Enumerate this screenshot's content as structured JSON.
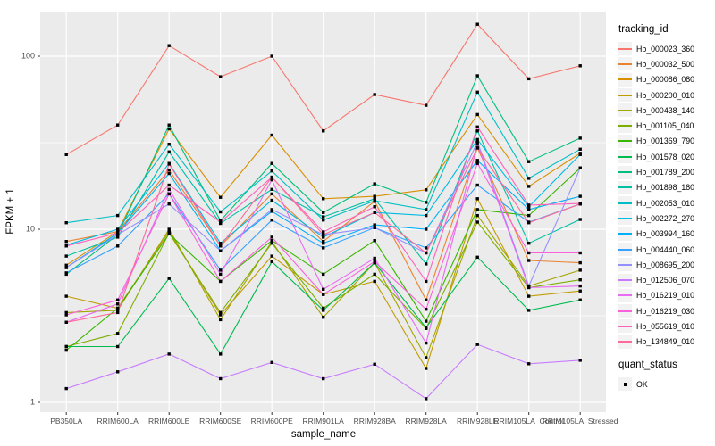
{
  "figure": {
    "background": "#FFFFFF",
    "panel_background": "#EBEBEB",
    "grid_color": "#FFFFFF",
    "tick_label_color": "#4D4D4D",
    "point_color": "#000000"
  },
  "axes": {
    "x_title": "sample_name",
    "y_title": "FPKM + 1",
    "y_tick_labels": [
      "1",
      "10",
      "100"
    ]
  },
  "legend": {
    "tracking_title": "tracking_id",
    "quant_title": "quant_status",
    "quant_items": [
      {
        "label": "OK",
        "shape": "filled-square"
      }
    ]
  },
  "chart_data": {
    "type": "line",
    "title": "",
    "xlabel": "sample_name",
    "ylabel": "FPKM + 1",
    "y_scale": "log10",
    "ylim": [
      0.88,
      180
    ],
    "y_major_ticks": [
      1,
      10,
      100
    ],
    "y_minor_ticks": [
      3.1623,
      31.623
    ],
    "grid": true,
    "legend_position": "right",
    "point_shape": "filled-square",
    "quant_status": "OK",
    "categories": [
      "PB350LA",
      "RRIM600LA",
      "RRIM600LE",
      "RRIM600SE",
      "RRIM600PE",
      "RRIM901LA",
      "RRIM928BA",
      "RRIM928LA",
      "RRIM928LE",
      "RRIM105LA_Control",
      "RRIM105LA_Stressed"
    ],
    "series": [
      {
        "name": "Hb_000023_360",
        "color": "#F8766D",
        "values": [
          27,
          40,
          115,
          76,
          100,
          37,
          60,
          52,
          153,
          74,
          88
        ]
      },
      {
        "name": "Hb_000032_500",
        "color": "#EA8331",
        "values": [
          8.5,
          9.7,
          22,
          8.0,
          16,
          8.5,
          14.5,
          3.9,
          29.5,
          6.6,
          6.4
        ]
      },
      {
        "name": "Hb_000086_080",
        "color": "#D89000",
        "values": [
          6.2,
          9.7,
          38,
          15.3,
          35,
          15,
          15.5,
          16.9,
          46,
          17.7,
          27.5
        ]
      },
      {
        "name": "Hb_000200_010",
        "color": "#C09B00",
        "values": [
          4.1,
          3.5,
          9.7,
          3.2,
          7.0,
          4.2,
          5.0,
          1.57,
          15,
          4.1,
          4.4
        ]
      },
      {
        "name": "Hb_000438_140",
        "color": "#A3A500",
        "values": [
          3.3,
          3.4,
          10,
          3.0,
          8.5,
          3.1,
          6.4,
          1.81,
          12,
          4.7,
          5.8
        ]
      },
      {
        "name": "Hb_001105_040",
        "color": "#7CAE00",
        "values": [
          2.1,
          2.5,
          9.5,
          3.3,
          8.3,
          3.5,
          5.5,
          2.67,
          11,
          4.6,
          5.1
        ]
      },
      {
        "name": "Hb_001369_790",
        "color": "#39B600",
        "values": [
          2.0,
          3.5,
          9.4,
          5.0,
          8.6,
          5.5,
          8.6,
          2.94,
          13,
          12,
          22.6
        ]
      },
      {
        "name": "Hb_001578_020",
        "color": "#00BB4E",
        "values": [
          2.1,
          2.1,
          5.2,
          1.9,
          6.5,
          3.4,
          6.4,
          2.7,
          6.9,
          3.4,
          3.9
        ]
      },
      {
        "name": "Hb_001789_200",
        "color": "#00BF7D",
        "values": [
          5.5,
          9.3,
          40,
          11.2,
          24,
          12.5,
          18.3,
          14.3,
          77,
          24.6,
          33.6
        ]
      },
      {
        "name": "Hb_001898_180",
        "color": "#00C1A3",
        "values": [
          7.0,
          9.0,
          28,
          10.8,
          17,
          11.8,
          15.0,
          6.3,
          37,
          8.3,
          11.4
        ]
      },
      {
        "name": "Hb_002053_010",
        "color": "#00BFC4",
        "values": [
          10.9,
          12,
          31,
          12.6,
          21.7,
          11.3,
          14.6,
          13,
          62,
          19.7,
          29
        ]
      },
      {
        "name": "Hb_002272_270",
        "color": "#00BAE0",
        "values": [
          8.1,
          10,
          24,
          8.3,
          14.7,
          9.0,
          12.5,
          12,
          33,
          13.5,
          27
        ]
      },
      {
        "name": "Hb_003994_160",
        "color": "#00B0F6",
        "values": [
          6.0,
          9.5,
          21,
          7.5,
          12.7,
          8.3,
          10.6,
          10,
          25,
          13,
          15.5
        ]
      },
      {
        "name": "Hb_004440_060",
        "color": "#35A2FF",
        "values": [
          5.6,
          8.0,
          16,
          5.8,
          11.3,
          7.8,
          10.2,
          7.8,
          18,
          11,
          14
        ]
      },
      {
        "name": "Hb_008695_200",
        "color": "#9590FF",
        "values": [
          6.0,
          9.3,
          14,
          7.5,
          13,
          9.3,
          10.2,
          7.3,
          32,
          4.7,
          22.6
        ]
      },
      {
        "name": "Hb_012506_070",
        "color": "#C77CFF",
        "values": [
          1.2,
          1.5,
          1.9,
          1.37,
          1.7,
          1.37,
          1.66,
          1.05,
          2.16,
          1.67,
          1.75
        ]
      },
      {
        "name": "Hb_016219_010",
        "color": "#E76BF3",
        "values": [
          2.9,
          3.7,
          17,
          5.5,
          19.3,
          4.5,
          6.8,
          2.2,
          31,
          4.6,
          4.7
        ]
      },
      {
        "name": "Hb_016219_030",
        "color": "#FA62DB",
        "values": [
          3.2,
          3.9,
          16,
          5.0,
          9.0,
          4.2,
          6.5,
          3.45,
          24,
          7.3,
          7.3
        ]
      },
      {
        "name": "Hb_055619_010",
        "color": "#FF62BC",
        "values": [
          8.0,
          9.5,
          18,
          11,
          20,
          9.65,
          13.5,
          5.0,
          39,
          13.8,
          14.1
        ]
      },
      {
        "name": "Hb_134849_010",
        "color": "#FF6A98",
        "values": [
          2.9,
          3.3,
          23.8,
          8.0,
          20,
          9.3,
          12.5,
          7.3,
          29.5,
          10.9,
          14
        ]
      }
    ]
  }
}
